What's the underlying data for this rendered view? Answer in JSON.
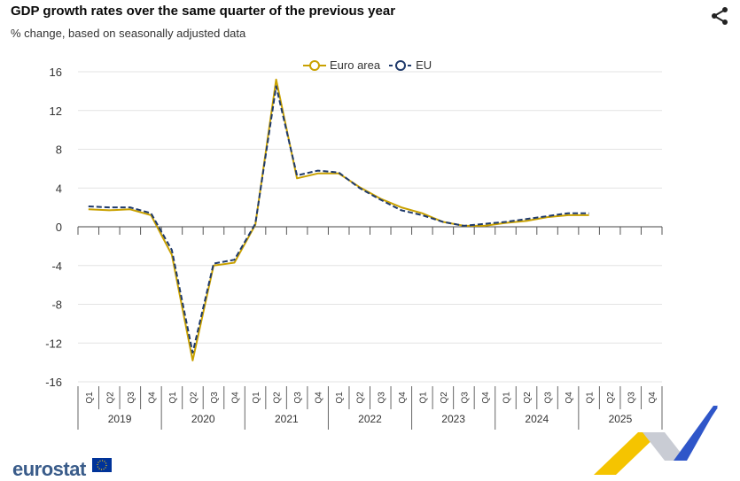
{
  "header": {
    "title": "GDP growth rates over the same quarter of the previous year",
    "subtitle": "% change, based on seasonally adjusted data"
  },
  "logo": {
    "text": "eurostat"
  },
  "icons": {
    "share": "share-icon",
    "eu_flag": "eu-flag-icon"
  },
  "colors": {
    "euro_area": "#c9a100",
    "eu": "#1f3a6b",
    "grid": "#e3e3e3",
    "axis": "#666666"
  },
  "chart_data": {
    "type": "line",
    "title": "GDP growth rates over the same quarter of the previous year",
    "subtitle": "% change, based on seasonally adjusted data",
    "ylim": [
      -16,
      16
    ],
    "yticks": [
      "16",
      "12",
      "8",
      "4",
      "0",
      "-4",
      "-8",
      "-12",
      "-16"
    ],
    "grid": true,
    "legend_position": "top-center",
    "quarter_labels": [
      "Q1",
      "Q2",
      "Q3",
      "Q4",
      "Q1",
      "Q2",
      "Q3",
      "Q4",
      "Q1",
      "Q2",
      "Q3",
      "Q4",
      "Q1",
      "Q2",
      "Q3",
      "Q4",
      "Q1",
      "Q2",
      "Q3",
      "Q4",
      "Q1",
      "Q2",
      "Q3",
      "Q4",
      "Q1",
      "Q2",
      "Q3",
      "Q4"
    ],
    "years": [
      "2019",
      "2020",
      "2021",
      "2022",
      "2023",
      "2024",
      "2025"
    ],
    "series": [
      {
        "name": "Euro area",
        "style": "solid",
        "values": [
          1.8,
          1.7,
          1.8,
          1.2,
          -2.9,
          -13.8,
          -4.0,
          -3.7,
          0.2,
          15.2,
          5.0,
          5.5,
          5.5,
          4.1,
          2.9,
          2.0,
          1.4,
          0.5,
          0.1,
          0.1,
          0.4,
          0.6,
          1.0,
          1.2,
          1.2
        ]
      },
      {
        "name": "EU",
        "style": "dashed",
        "values": [
          2.1,
          2.0,
          2.0,
          1.4,
          -2.4,
          -13.0,
          -3.8,
          -3.4,
          0.3,
          14.5,
          5.3,
          5.8,
          5.6,
          4.0,
          2.8,
          1.7,
          1.2,
          0.5,
          0.1,
          0.3,
          0.5,
          0.8,
          1.1,
          1.4,
          1.4
        ]
      }
    ]
  }
}
